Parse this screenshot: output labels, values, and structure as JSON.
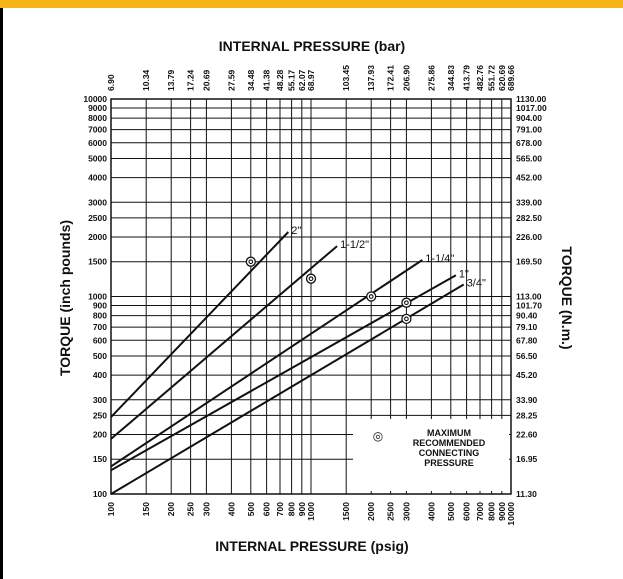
{
  "colors": {
    "accent_bar": "#f5b519",
    "ink": "#111111",
    "background": "#ffffff"
  },
  "chart_data": {
    "type": "line",
    "x_scale": "log",
    "y_scale": "log",
    "grid": true,
    "title": "",
    "xlabel_bottom": "INTERNAL PRESSURE (psig)",
    "xlabel_top": "INTERNAL PRESSURE (bar)",
    "ylabel_left": "TORQUE (inch pounds)",
    "ylabel_right": "TORQUE (N.m.)",
    "xlim": [
      100,
      10000
    ],
    "ylim": [
      100,
      10000
    ],
    "x_ticks_psig": [
      100,
      150,
      200,
      250,
      300,
      400,
      500,
      600,
      700,
      800,
      900,
      1000,
      1500,
      2000,
      2500,
      3000,
      4000,
      5000,
      6000,
      7000,
      8000,
      9000,
      10000
    ],
    "x_tick_labels_bar": [
      "6.90",
      "10.34",
      "13.79",
      "17.24",
      "20.69",
      "27.59",
      "34.48",
      "41.38",
      "48.28",
      "55.17",
      "62.07",
      "68.97",
      "103.45",
      "137.93",
      "172.41",
      "206.90",
      "275.86",
      "344.83",
      "413.79",
      "482.76",
      "551.72",
      "620.69",
      "689.66"
    ],
    "y_ticks_inlb": [
      100,
      150,
      200,
      250,
      300,
      400,
      500,
      600,
      700,
      800,
      900,
      1000,
      1500,
      2000,
      2500,
      3000,
      4000,
      5000,
      6000,
      7000,
      8000,
      9000,
      10000
    ],
    "y_tick_labels_nm": [
      "11.30",
      "16.95",
      "22.60",
      "28.25",
      "33.90",
      "45.20",
      "56.50",
      "67.80",
      "79.10",
      "90.40",
      "101.70",
      "113.00",
      "169.50",
      "226.00",
      "282.50",
      "339.00",
      "452.00",
      "565.00",
      "678.00",
      "791.00",
      "904.00",
      "1017.00",
      "1130.00"
    ],
    "series": [
      {
        "name": "2\"",
        "x": [
          100,
          770
        ],
        "y": [
          245,
          2120
        ],
        "max_point": [
          500,
          1500
        ]
      },
      {
        "name": "1-1/2\"",
        "x": [
          100,
          1350
        ],
        "y": [
          190,
          1800
        ],
        "max_point": [
          1000,
          1230
        ]
      },
      {
        "name": "1-1/4\"",
        "x": [
          100,
          3600
        ],
        "y": [
          138,
          1530
        ],
        "max_point": [
          2000,
          1000
        ]
      },
      {
        "name": "1\"",
        "x": [
          100,
          5300
        ],
        "y": [
          132,
          1280
        ],
        "max_point": [
          3000,
          930
        ]
      },
      {
        "name": "3/4\"",
        "x": [
          100,
          5800
        ],
        "y": [
          100,
          1150
        ],
        "max_point": [
          3000,
          770
        ]
      }
    ],
    "legend": {
      "symbol": "◎",
      "lines": [
        "MAXIMUM",
        "RECOMMENDED",
        "CONNECTING",
        "PRESSURE"
      ],
      "placement": "bottom-right"
    }
  }
}
